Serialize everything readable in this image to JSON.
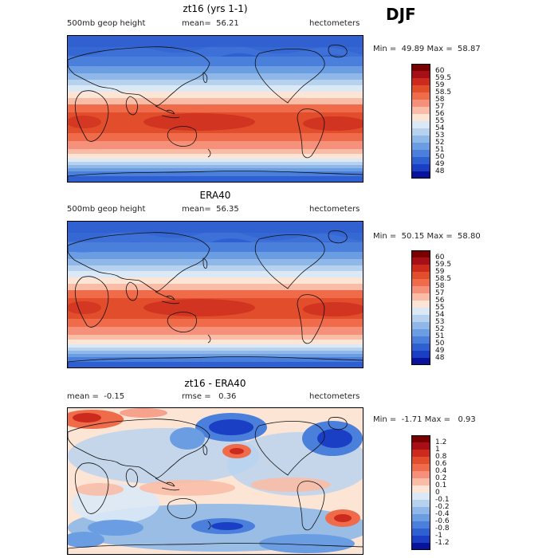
{
  "season": "DJF",
  "panels": [
    {
      "id": "model",
      "title": "zt16 (yrs 1-1)",
      "left_label": "500mb geop height",
      "center_label": "mean=  56.21",
      "right_label": "hectometers",
      "minmax": "Min =  49.89 Max =  58.87",
      "colorbar": {
        "labels": [
          "60",
          "59.5",
          "59",
          "58.5",
          "58",
          "57",
          "56",
          "55",
          "54",
          "53",
          "52",
          "51",
          "50",
          "49",
          "48"
        ],
        "colors": [
          "#7a0000",
          "#a50f15",
          "#cb2a1c",
          "#e24e2b",
          "#ef6b4a",
          "#f5917a",
          "#f9bca7",
          "#fde5d6",
          "#dbe9f7",
          "#b6d2ef",
          "#8fb8e8",
          "#6a9de2",
          "#4a7fdc",
          "#2f60d2",
          "#1a3fc4",
          "#08129a"
        ]
      }
    },
    {
      "id": "obs",
      "title": "ERA40",
      "left_label": "500mb geop height",
      "center_label": "mean=  56.35",
      "right_label": "hectometers",
      "minmax": "Min =  50.15 Max =  58.80",
      "colorbar": {
        "labels": [
          "60",
          "59.5",
          "59",
          "58.5",
          "58",
          "57",
          "56",
          "55",
          "54",
          "53",
          "52",
          "51",
          "50",
          "49",
          "48"
        ],
        "colors": [
          "#7a0000",
          "#a50f15",
          "#cb2a1c",
          "#e24e2b",
          "#ef6b4a",
          "#f5917a",
          "#f9bca7",
          "#fde5d6",
          "#dbe9f7",
          "#b6d2ef",
          "#8fb8e8",
          "#6a9de2",
          "#4a7fdc",
          "#2f60d2",
          "#1a3fc4",
          "#08129a"
        ]
      }
    },
    {
      "id": "diff",
      "title": "zt16 - ERA40",
      "left_label": "mean =  -0.15",
      "center_label": "rmse =   0.36",
      "right_label": "hectometers",
      "minmax": "Min =  -1.71 Max =   0.93",
      "colorbar": {
        "labels": [
          "1.2",
          "1",
          "0.8",
          "0.6",
          "0.4",
          "0.2",
          "0.1",
          "0",
          "-0.1",
          "-0.2",
          "-0.4",
          "-0.6",
          "-0.8",
          "-1",
          "-1.2"
        ],
        "colors": [
          "#7a0000",
          "#a50f15",
          "#cb2a1c",
          "#e24e2b",
          "#ef6b4a",
          "#f5917a",
          "#f9bca7",
          "#fde5d6",
          "#dbe9f7",
          "#b6d2ef",
          "#8fb8e8",
          "#6a9de2",
          "#4a7fdc",
          "#2f60d2",
          "#1a3fc4",
          "#08129a"
        ]
      }
    }
  ]
}
